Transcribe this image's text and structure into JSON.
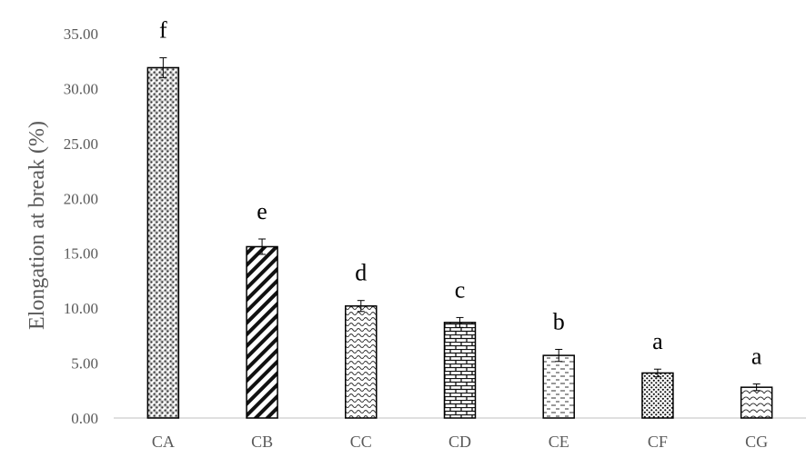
{
  "chart_data": {
    "type": "bar",
    "title": "",
    "xlabel": "",
    "ylabel": "Elongation at break (%)",
    "ylim": [
      0,
      35
    ],
    "yticks": [
      "0.00",
      "5.00",
      "10.00",
      "15.00",
      "20.00",
      "25.00",
      "30.00",
      "35.00"
    ],
    "categories": [
      "CA",
      "CB",
      "CC",
      "CD",
      "CE",
      "CF",
      "CG"
    ],
    "values": [
      31.9,
      15.6,
      10.2,
      8.7,
      5.7,
      4.1,
      2.8
    ],
    "errors": [
      0.9,
      0.7,
      0.5,
      0.45,
      0.55,
      0.35,
      0.3
    ],
    "annotations": [
      "f",
      "e",
      "d",
      "c",
      "b",
      "a",
      "a"
    ],
    "patterns": [
      "crosshatch-dots",
      "diagonal-stripes",
      "waves",
      "bricks",
      "dashes",
      "dots",
      "scales"
    ],
    "grid": false,
    "legend": "none",
    "colors": {
      "bar_stroke": "#000000",
      "bar_fill": "#ffffff",
      "axis": "#bfbfbf",
      "text": "#595959"
    }
  }
}
